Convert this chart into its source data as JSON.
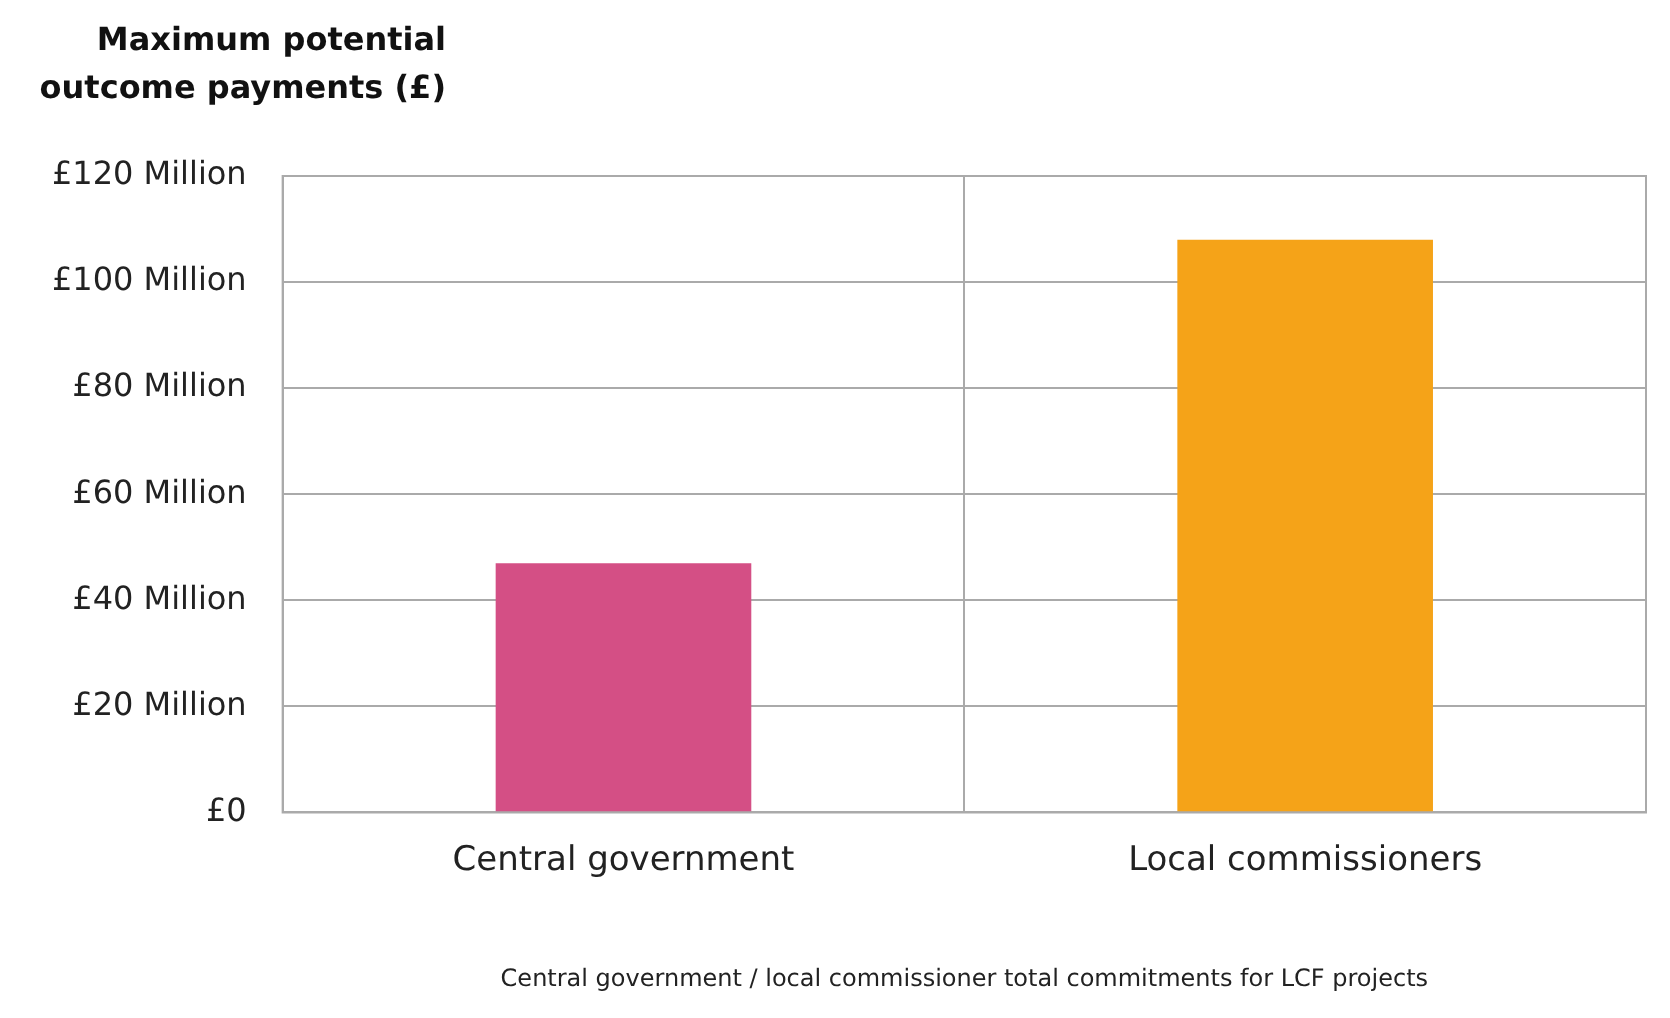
{
  "chart_data": {
    "type": "bar",
    "ylabel": "Maximum potential outcome payments (£)",
    "xlabel": "Central government / local commissioner total commitments for LCF projects",
    "categories": [
      "Central government",
      "Local commissioners"
    ],
    "values": [
      47,
      108
    ],
    "colors": [
      "#d44f85",
      "#f5a318"
    ],
    "ylim": [
      0,
      120
    ],
    "yticks": [
      {
        "value": 0,
        "label": "£0"
      },
      {
        "value": 20,
        "label": "£20 Million"
      },
      {
        "value": 40,
        "label": "£40 Million"
      },
      {
        "value": 60,
        "label": "£60 Million"
      },
      {
        "value": 80,
        "label": "£80 Million"
      },
      {
        "value": 100,
        "label": "£100 Million"
      },
      {
        "value": 120,
        "label": "£120 Million"
      }
    ],
    "grid": true,
    "legend": false
  }
}
